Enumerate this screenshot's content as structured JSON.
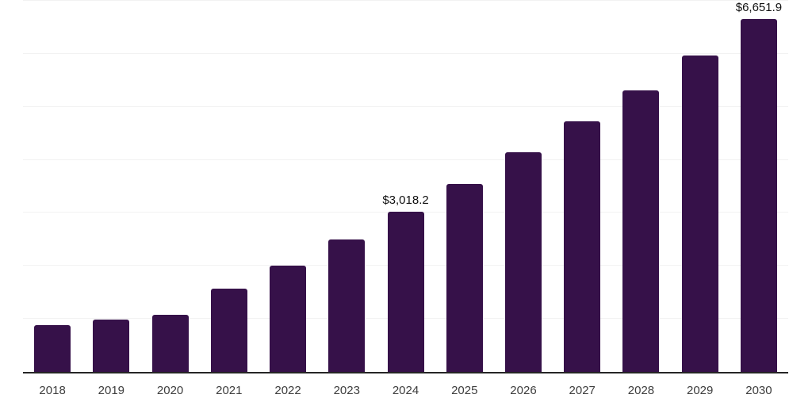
{
  "chart_data": {
    "type": "bar",
    "categories": [
      "2018",
      "2019",
      "2020",
      "2021",
      "2022",
      "2023",
      "2024",
      "2025",
      "2026",
      "2027",
      "2028",
      "2029",
      "2030"
    ],
    "values": [
      890,
      985,
      1075,
      1565,
      2005,
      2505,
      3018.2,
      3550,
      4150,
      4720,
      5315,
      5975,
      6651.9
    ],
    "data_labels": [
      "",
      "",
      "",
      "",
      "",
      "",
      "$3,018.2",
      "",
      "",
      "",
      "",
      "",
      "$6,651.9"
    ],
    "title": "",
    "xlabel": "",
    "ylabel": "",
    "ylim": [
      0,
      7000
    ],
    "gridline_values": [
      1000,
      2000,
      3000,
      4000,
      5000,
      6000,
      7000
    ],
    "grid": "horizontal",
    "legend": "none",
    "y_tick_labels_visible": false,
    "colors": {
      "bar": "#361149",
      "axis": "#262626",
      "gridline": "#f2f2f2",
      "tick_label": "#3d3d3d",
      "value_label": "#111111",
      "background": "#ffffff"
    }
  }
}
